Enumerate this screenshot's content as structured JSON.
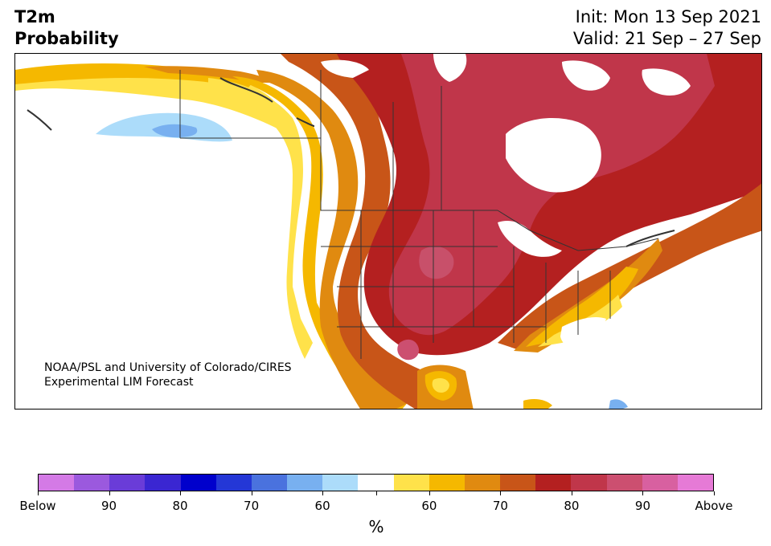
{
  "header": {
    "title_line1": "T2m",
    "title_line2": "Probability",
    "init_text": "Init: Mon 13 Sep 2021",
    "valid_text": "Valid: 21 Sep – 27 Sep"
  },
  "map": {
    "credit_line1": "NOAA/PSL and University of Colorado/CIRES",
    "credit_line2": "Experimental LIM Forecast",
    "colors": {
      "above_55_60": "#ffe24a",
      "above_60_65": "#f5b800",
      "above_65_70": "#e08a10",
      "above_70_75": "#c85518",
      "above_75_80": "#b42020",
      "above_80_85": "#c0364a",
      "above_85_90": "#c8506a",
      "below_60_65": "#acdcfa",
      "below_65_70": "#78b0f0",
      "land_neutral": "#ffffff",
      "borders": "#333333"
    }
  },
  "colorbar": {
    "unit_label": "%",
    "colors": [
      "#d47ae6",
      "#9b59de",
      "#6a3cd8",
      "#3a26d2",
      "#0000cc",
      "#2437d6",
      "#4a72de",
      "#78b0f0",
      "#acdcfa",
      "#ffffff",
      "#ffe24a",
      "#f5b800",
      "#e08a10",
      "#c85518",
      "#b42020",
      "#c0364a",
      "#cc4f70",
      "#d860a0",
      "#e67ad6"
    ],
    "tick_labels": [
      "Below",
      "90",
      "80",
      "70",
      "60",
      "",
      "60",
      "70",
      "80",
      "90",
      "Above"
    ]
  }
}
